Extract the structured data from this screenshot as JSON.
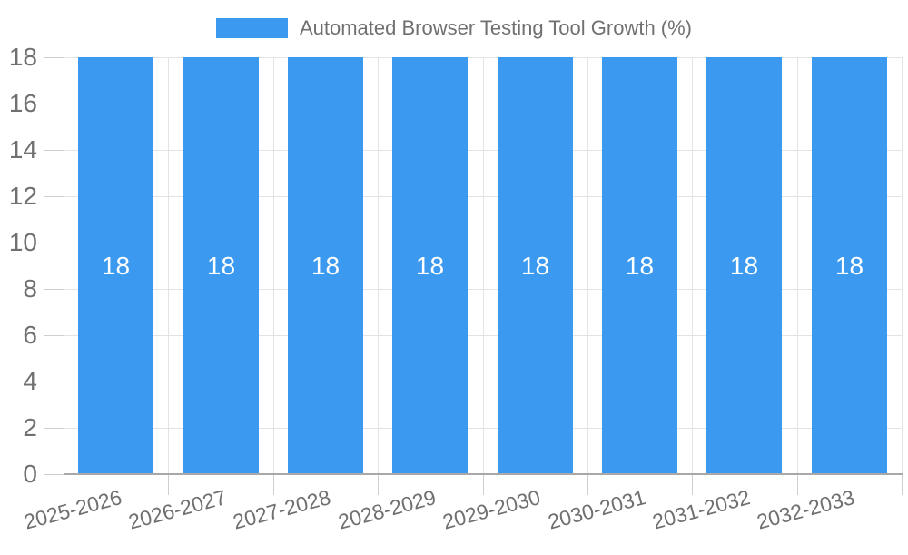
{
  "legend": {
    "label": "Automated Browser Testing Tool Growth (%)"
  },
  "chart_data": {
    "type": "bar",
    "title": "Automated Browser Testing Tool Growth (%)",
    "categories": [
      "2025-2026",
      "2026-2027",
      "2027-2028",
      "2028-2029",
      "2029-2030",
      "2030-2031",
      "2031-2032",
      "2032-2033"
    ],
    "values": [
      18,
      18,
      18,
      18,
      18,
      18,
      18,
      18
    ],
    "bar_value_labels": [
      "18",
      "18",
      "18",
      "18",
      "18",
      "18",
      "18",
      "18"
    ],
    "xlabel": "",
    "ylabel": "",
    "ylim": [
      0,
      18
    ],
    "yticks": [
      0,
      2,
      4,
      6,
      8,
      10,
      12,
      14,
      16,
      18
    ],
    "grid": true,
    "legend_position": "top-center",
    "x_label_rotation_deg": -15,
    "colors": {
      "bar": "#3b9af0",
      "bar_label": "#ffffff",
      "axis_line": "#a8a8a8",
      "grid_line": "#e3e3e3",
      "tick_mark": "#cfcfcf",
      "tick_text": "#707070",
      "legend_text": "#707070",
      "background": "#ffffff"
    }
  }
}
